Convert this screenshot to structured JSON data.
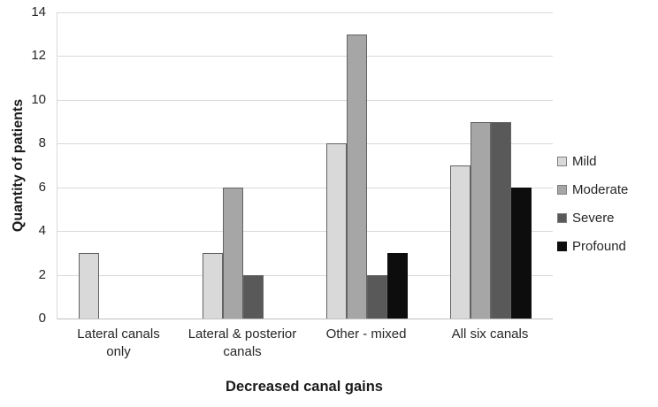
{
  "chart_data": {
    "type": "bar",
    "title": "",
    "xlabel": "Decreased canal gains",
    "ylabel": "Quantity of patients",
    "categories": [
      "Lateral canals only",
      "Lateral & posterior canals",
      "Other - mixed",
      "All six canals"
    ],
    "series": [
      {
        "name": "Mild",
        "color": "#d9d9d9",
        "values": [
          3,
          3,
          8,
          7
        ]
      },
      {
        "name": "Moderate",
        "color": "#a6a6a6",
        "values": [
          0,
          6,
          13,
          9
        ]
      },
      {
        "name": "Severe",
        "color": "#595959",
        "values": [
          0,
          2,
          2,
          9
        ]
      },
      {
        "name": "Profound",
        "color": "#0d0d0d",
        "values": [
          0,
          0,
          3,
          6
        ]
      }
    ],
    "ylim": [
      0,
      14
    ],
    "yticks": [
      0,
      2,
      4,
      6,
      8,
      10,
      12,
      14
    ],
    "grid": true,
    "legend_position": "right",
    "style": {
      "gridline_color": "#d9d9d9",
      "axis_line_color": "#bfbfbf",
      "bar_border_color": "#636363",
      "text_color": "#262626"
    }
  }
}
